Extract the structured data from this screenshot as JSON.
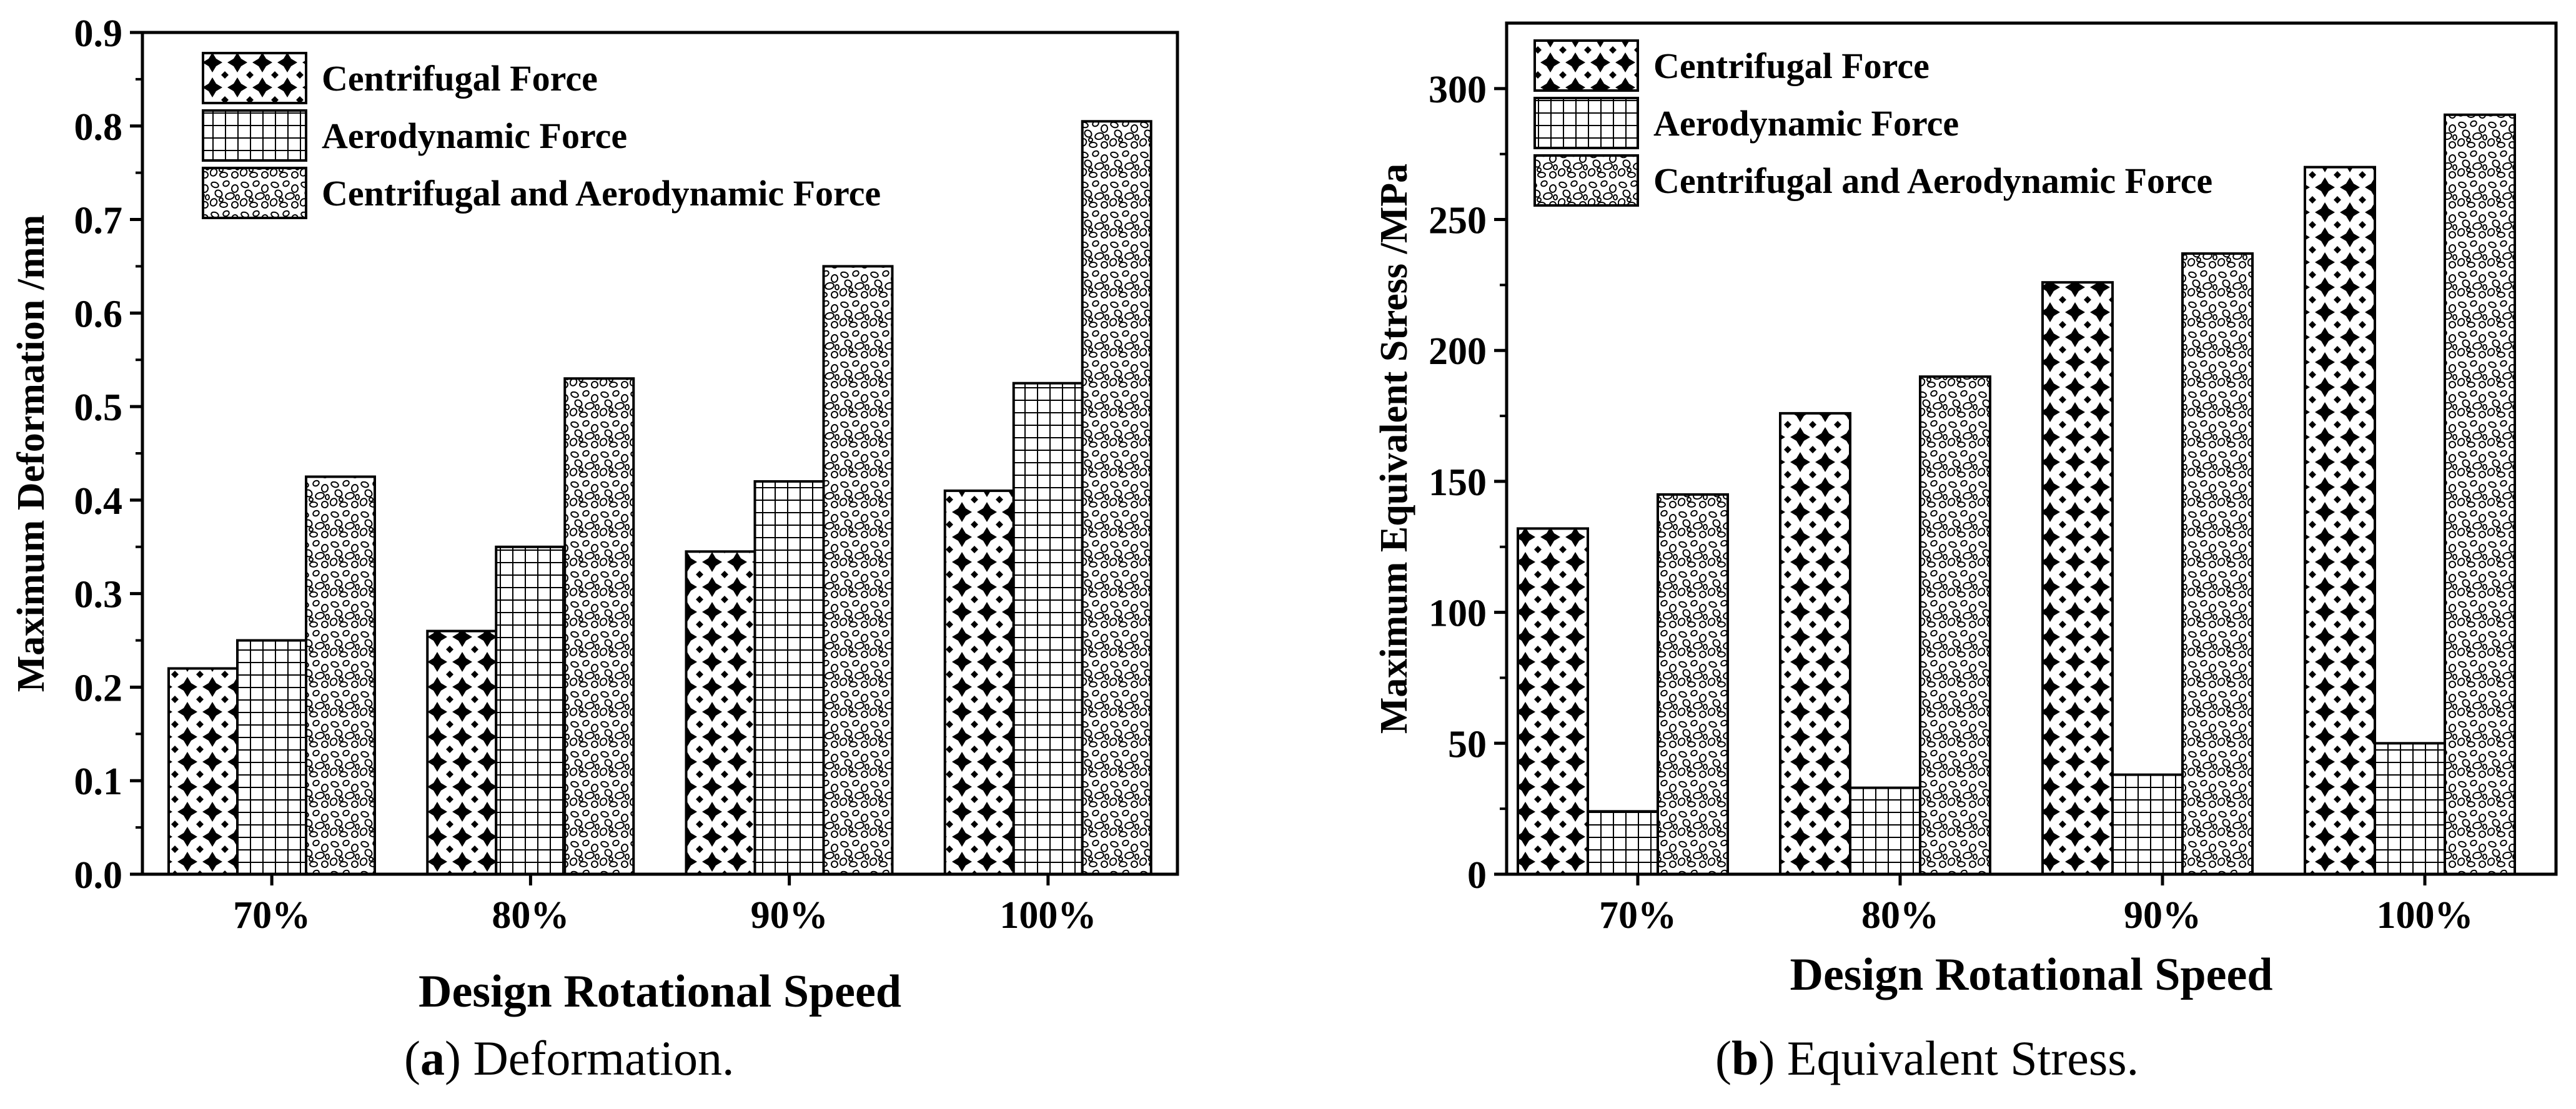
{
  "figure": {
    "panel_a_caption": {
      "open": "(",
      "letter": "a",
      "close": ")",
      "text": " Deformation."
    },
    "panel_b_caption": {
      "open": "(",
      "letter": "b",
      "close": ")",
      "text": " Equivalent Stress."
    }
  },
  "chart_data": [
    {
      "type": "bar",
      "title": "",
      "xlabel": "Design Rotational Speed",
      "ylabel": "Maximum Deformation /mm",
      "categories": [
        "70%",
        "80%",
        "90%",
        "100%"
      ],
      "ylim": [
        0,
        0.9
      ],
      "yticks": [
        "0.0",
        "0.1",
        "0.2",
        "0.3",
        "0.4",
        "0.5",
        "0.6",
        "0.7",
        "0.8",
        "0.9"
      ],
      "legend_position": "top-left",
      "series": [
        {
          "name": "Centrifugal Force",
          "pattern": "checker",
          "values": [
            0.22,
            0.26,
            0.345,
            0.41
          ]
        },
        {
          "name": "Aerodynamic Force",
          "pattern": "grid",
          "values": [
            0.25,
            0.35,
            0.42,
            0.525
          ]
        },
        {
          "name": "Centrifugal and Aerodynamic Force",
          "pattern": "pebble",
          "values": [
            0.425,
            0.53,
            0.65,
            0.805
          ]
        }
      ]
    },
    {
      "type": "bar",
      "title": "",
      "xlabel": "Design Rotational Speed",
      "ylabel": "Maximum Equivalent Stress /MPa",
      "categories": [
        "70%",
        "80%",
        "90%",
        "100%"
      ],
      "ylim": [
        0,
        325
      ],
      "yticks": [
        "0",
        "50",
        "100",
        "150",
        "200",
        "250",
        "300"
      ],
      "legend_position": "top-left",
      "series": [
        {
          "name": "Centrifugal Force",
          "pattern": "checker",
          "values": [
            132,
            176,
            226,
            270
          ]
        },
        {
          "name": "Aerodynamic Force",
          "pattern": "grid",
          "values": [
            24,
            33,
            38,
            50
          ]
        },
        {
          "name": "Centrifugal and Aerodynamic Force",
          "pattern": "pebble",
          "values": [
            145,
            190,
            237,
            290
          ]
        }
      ]
    }
  ]
}
